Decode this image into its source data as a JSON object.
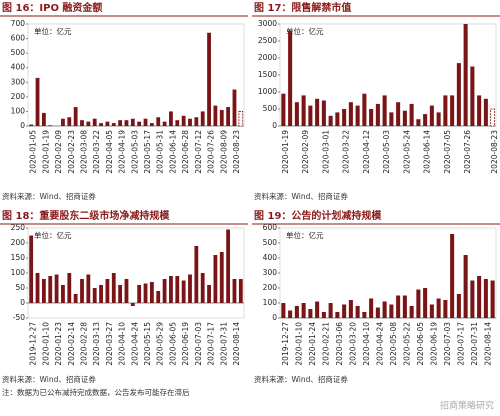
{
  "chart_data": [
    {
      "type": "bar",
      "title": "图 16：IPO 融资金额",
      "unit_label": "单位：亿元",
      "source": "资料来源：Wind、招商证券",
      "color": "#7b1416",
      "last_bar_dashed": true,
      "ylim": [
        0,
        700
      ],
      "yticks": [
        0,
        100,
        200,
        300,
        400,
        500,
        600,
        700
      ],
      "categories": [
        "2020-01-05",
        null,
        "2020-01-19",
        null,
        "2020-02-09",
        null,
        "2020-02-23",
        null,
        "2020-03-08",
        null,
        "2020-03-22",
        null,
        "2020-04-05",
        null,
        "2020-04-19",
        null,
        "2020-05-03",
        null,
        "2020-05-17",
        null,
        "2020-05-31",
        null,
        "2020-06-14",
        null,
        "2020-06-28",
        null,
        "2020-07-12",
        null,
        "2020-07-26",
        null,
        "2020-08-09",
        null,
        "2020-08-23",
        null
      ],
      "values": [
        10,
        330,
        90,
        5,
        0,
        50,
        60,
        130,
        40,
        30,
        50,
        20,
        30,
        20,
        40,
        40,
        50,
        30,
        50,
        20,
        60,
        30,
        100,
        40,
        70,
        50,
        60,
        100,
        640,
        140,
        110,
        130,
        250,
        100
      ]
    },
    {
      "type": "bar",
      "title": "图 17：限售解禁市值",
      "unit_label": "单位：亿元",
      "source": "资料来源：Wind、招商证券",
      "color": "#7b1416",
      "last_bar_dashed": true,
      "ylim": [
        0,
        3000
      ],
      "yticks": [
        0,
        500,
        1000,
        1500,
        2000,
        2500,
        3000
      ],
      "categories": [
        "2020-01-19",
        null,
        null,
        "2020-02-09",
        null,
        null,
        "2020-03-01",
        null,
        null,
        "2020-03-22",
        null,
        null,
        "2020-04-12",
        null,
        null,
        "2020-05-03",
        null,
        null,
        "2020-05-24",
        null,
        null,
        "2020-06-14",
        null,
        null,
        "2020-07-05",
        null,
        null,
        "2020-07-26",
        null,
        null,
        null,
        "2020-08-23"
      ],
      "values": [
        950,
        2800,
        700,
        900,
        600,
        800,
        750,
        300,
        400,
        500,
        700,
        600,
        950,
        500,
        650,
        900,
        400,
        700,
        450,
        650,
        200,
        350,
        600,
        400,
        900,
        900,
        1850,
        3000,
        1750,
        900,
        800,
        500
      ]
    },
    {
      "type": "bar",
      "title": "图 18：重要股东二级市场净减持规模",
      "unit_label": "单位：亿元",
      "source": "资料来源：Wind、招商证券",
      "note": "注：数据为已公布减持完成数据，公告发布可能存在滞后",
      "color": "#7b1416",
      "ylim": [
        -50,
        250
      ],
      "yticks": [
        -50,
        0,
        50,
        100,
        150,
        200,
        250
      ],
      "categories": [
        "2019-12-27",
        null,
        "2020-01-10",
        null,
        "2020-01-23",
        null,
        "2020-02-14",
        null,
        "2020-02-28",
        null,
        "2020-03-13",
        null,
        "2020-03-27",
        null,
        "2020-04-10",
        null,
        "2020-04-24",
        null,
        "2020-05-15",
        null,
        "2020-05-29",
        null,
        "2020-06-05",
        null,
        "2020-06-19",
        null,
        "2020-07-03",
        null,
        "2020-07-17",
        null,
        "2020-07-31",
        null,
        "2020-08-14",
        null
      ],
      "values": [
        225,
        100,
        80,
        90,
        95,
        60,
        100,
        30,
        80,
        95,
        50,
        60,
        80,
        100,
        60,
        80,
        -10,
        60,
        65,
        70,
        40,
        80,
        90,
        90,
        75,
        95,
        190,
        100,
        60,
        160,
        170,
        245,
        80,
        80
      ]
    },
    {
      "type": "bar",
      "title": "图 19：公告的计划减持规模",
      "unit_label": "单位：亿元",
      "source": "资料来源：Wind、招商证券",
      "color": "#7b1416",
      "ylim": [
        0,
        600
      ],
      "yticks": [
        0,
        100,
        200,
        300,
        400,
        500,
        600
      ],
      "categories": [
        "2019-12-27",
        null,
        "2020-01-10",
        null,
        "2020-01-24",
        null,
        "2020-02-21",
        null,
        "2020-03-06",
        null,
        "2020-03-20",
        null,
        "2020-04-10",
        null,
        "2020-04-24",
        null,
        "2020-05-08",
        null,
        "2020-05-22",
        null,
        "2020-06-05",
        null,
        "2020-06-19",
        null,
        "2020-07-03",
        null,
        "2020-07-17",
        null,
        "2020-07-31",
        null,
        "2020-08-14",
        null
      ],
      "values": [
        100,
        50,
        80,
        100,
        60,
        110,
        40,
        100,
        40,
        90,
        120,
        80,
        40,
        130,
        70,
        110,
        90,
        150,
        150,
        80,
        190,
        200,
        90,
        130,
        120,
        560,
        160,
        420,
        250,
        280,
        260,
        250
      ]
    }
  ],
  "watermark": "招商策略研究"
}
